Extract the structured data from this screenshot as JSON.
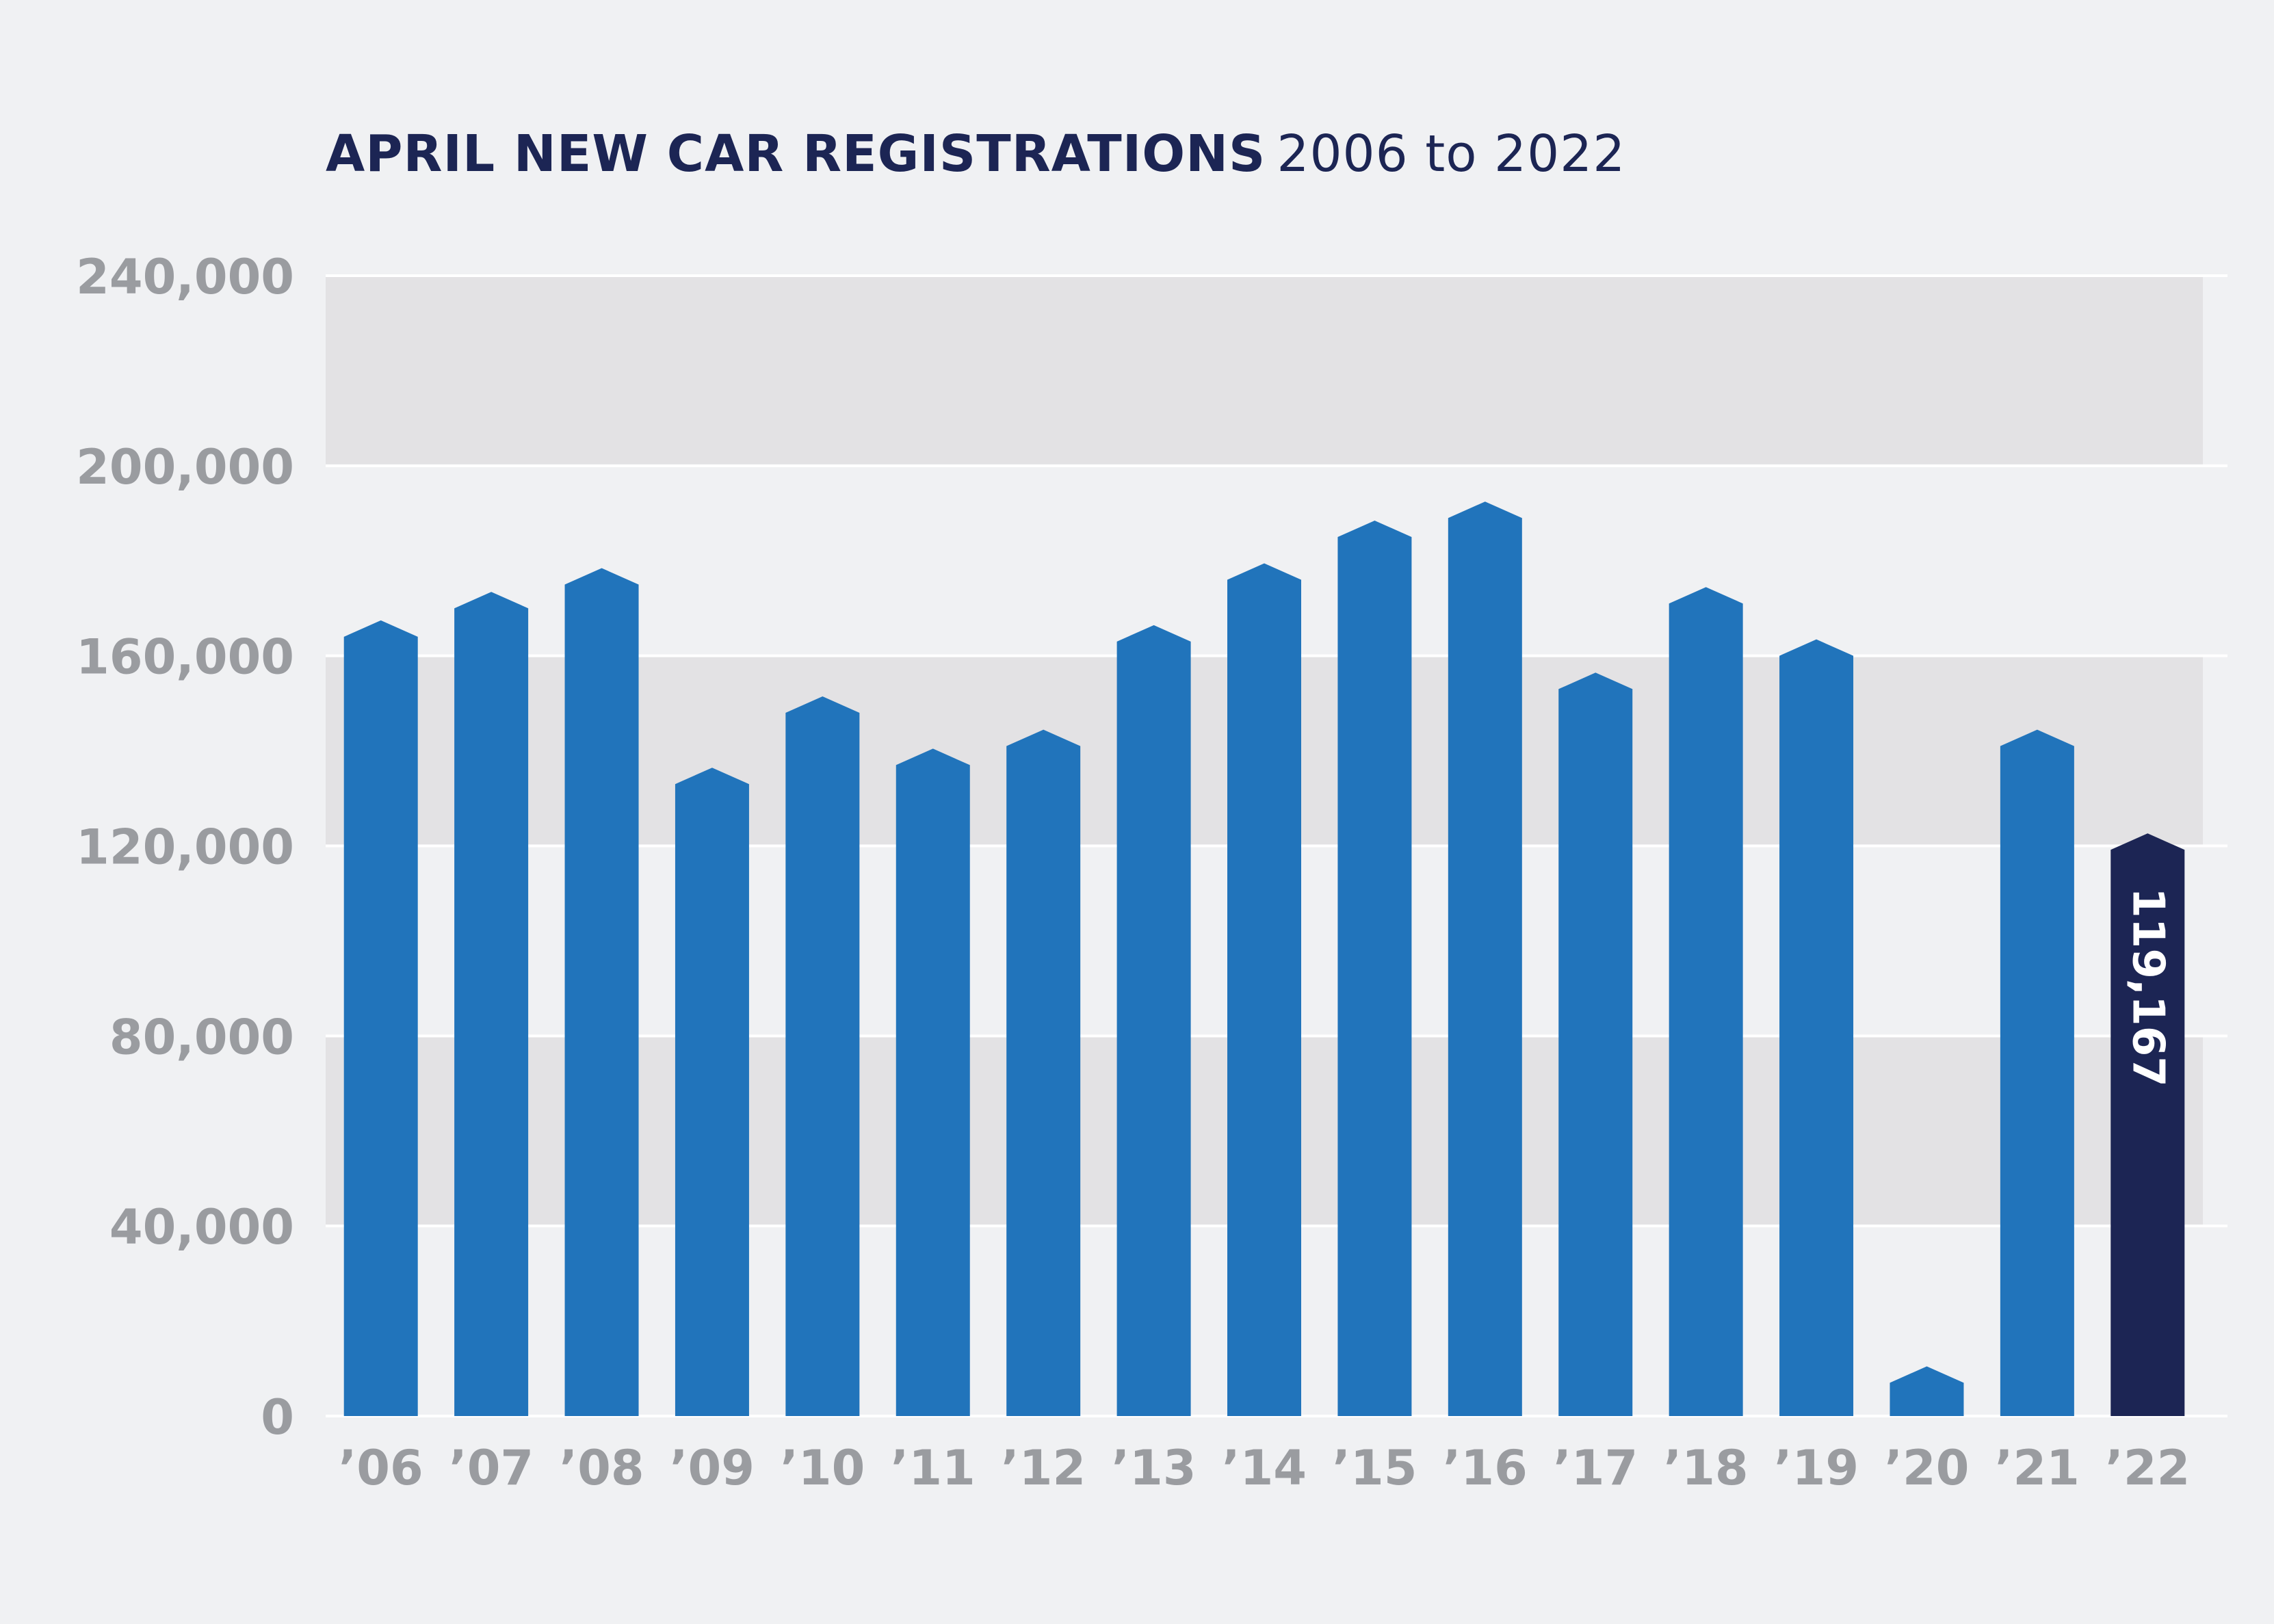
{
  "chart_data": {
    "type": "bar",
    "title": "APRIL NEW CAR REGISTRATIONS",
    "subtitle": "2006 to 2022",
    "xlabel": "",
    "ylabel": "",
    "ylim": [
      0,
      240000
    ],
    "yticks": [
      0,
      40000,
      80000,
      120000,
      160000,
      200000,
      240000
    ],
    "ytick_labels": [
      "0",
      "40,000",
      "80,000",
      "120,000",
      "160,000",
      "200,000",
      "240,000"
    ],
    "categories": [
      "’06",
      "’07",
      "’08",
      "’09",
      "’10",
      "’11",
      "’12",
      "’13",
      "’14",
      "’15",
      "’16",
      "’17",
      "’18",
      "’19",
      "’20",
      "’21",
      "’22"
    ],
    "values": [
      164000,
      170000,
      175000,
      133000,
      148000,
      137000,
      141000,
      163000,
      176000,
      185000,
      189000,
      153000,
      171000,
      160000,
      7000,
      141000,
      119167
    ],
    "highlight": {
      "index": 16,
      "label": "119,167"
    },
    "grid": true,
    "colors": {
      "bar": "#2174bb",
      "highlight": "#1c2554",
      "band": "#e3e2e4",
      "background": "#f0f1f3",
      "tick": "#9a9ca0",
      "title": "#1c2554"
    }
  }
}
